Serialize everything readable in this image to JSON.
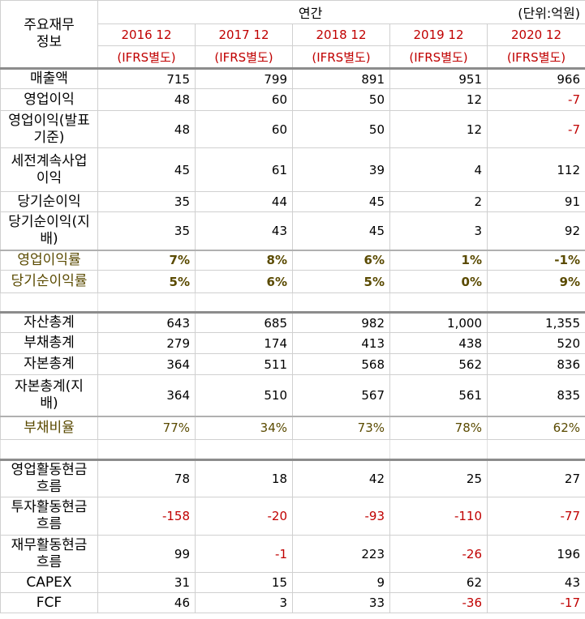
{
  "header": {
    "corner_label": "주요재무\n정보",
    "period_label": "연간",
    "unit_label": "(단위:억원)",
    "years": [
      "2016 12",
      "2017 12",
      "2018 12",
      "2019 12",
      "2020 12"
    ],
    "basis": [
      "(IFRS별도)",
      "(IFRS별도)",
      "(IFRS별도)",
      "(IFRS별도)",
      "(IFRS별도)"
    ]
  },
  "rows": [
    {
      "label": "매출액",
      "values": [
        "715",
        "799",
        "891",
        "951",
        "966"
      ]
    },
    {
      "label": "영업이익",
      "values": [
        "48",
        "60",
        "50",
        "12",
        "-7"
      ]
    },
    {
      "label": "영업이익(발표기준)",
      "values": [
        "48",
        "60",
        "50",
        "12",
        "-7"
      ]
    },
    {
      "label": "세전계속사업이익",
      "values": [
        "45",
        "61",
        "39",
        "4",
        "112"
      ]
    },
    {
      "label": "당기순이익",
      "values": [
        "35",
        "44",
        "45",
        "2",
        "91"
      ]
    },
    {
      "label": "당기순이익(지배)",
      "values": [
        "35",
        "43",
        "45",
        "3",
        "92"
      ]
    },
    {
      "label": "영업이익률",
      "values": [
        "7%",
        "8%",
        "6%",
        "1%",
        "-1%"
      ]
    },
    {
      "label": "당기순이익률",
      "values": [
        "5%",
        "6%",
        "5%",
        "0%",
        "9%"
      ]
    },
    {
      "label": "자산총계",
      "values": [
        "643",
        "685",
        "982",
        "1,000",
        "1,355"
      ]
    },
    {
      "label": "부채총계",
      "values": [
        "279",
        "174",
        "413",
        "438",
        "520"
      ]
    },
    {
      "label": "자본총계",
      "values": [
        "364",
        "511",
        "568",
        "562",
        "836"
      ]
    },
    {
      "label": "자본총계(지배)",
      "values": [
        "364",
        "510",
        "567",
        "561",
        "835"
      ]
    },
    {
      "label": "부채비율",
      "values": [
        "77%",
        "34%",
        "73%",
        "78%",
        "62%"
      ]
    },
    {
      "label": "영업활동현금흐름",
      "values": [
        "78",
        "18",
        "42",
        "25",
        "27"
      ]
    },
    {
      "label": "투자활동현금흐름",
      "values": [
        "-158",
        "-20",
        "-93",
        "-110",
        "-77"
      ]
    },
    {
      "label": "재무활동현금흐름",
      "values": [
        "99",
        "-1",
        "223",
        "-26",
        "196"
      ]
    },
    {
      "label": "CAPEX",
      "values": [
        "31",
        "15",
        "9",
        "62",
        "43"
      ]
    },
    {
      "label": "FCF",
      "values": [
        "46",
        "3",
        "33",
        "-36",
        "-17"
      ]
    }
  ]
}
